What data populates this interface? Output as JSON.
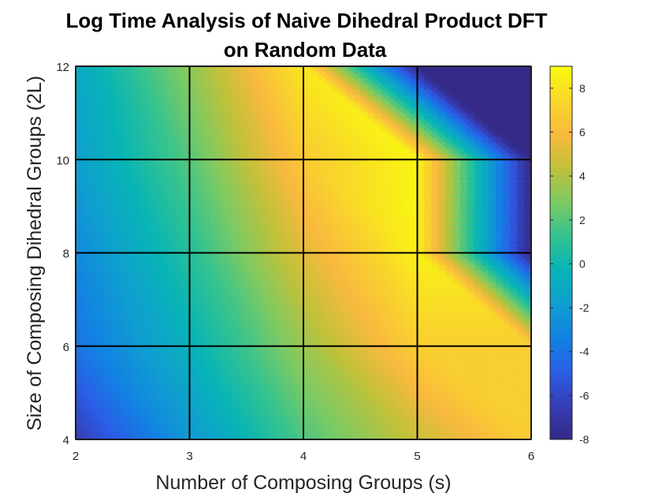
{
  "chart_data": {
    "type": "heatmap",
    "title": "Log Time Analysis of Naive Dihedral Product DFT",
    "subtitle": "on Random Data",
    "xlabel": "Number of Composing Groups (s)",
    "ylabel": "Size of Composing Dihedral Groups (2L)",
    "x": [
      2,
      3,
      4,
      5,
      6
    ],
    "y": [
      4,
      6,
      8,
      10,
      12
    ],
    "xlim": [
      2,
      6
    ],
    "ylim": [
      4,
      12
    ],
    "xticks": [
      "2",
      "3",
      "4",
      "5",
      "6"
    ],
    "yticks": [
      "4",
      "6",
      "8",
      "10",
      "12"
    ],
    "z": [
      [
        -6.5,
        -2.2,
        1.8,
        4.6,
        7.0
      ],
      [
        -4.0,
        -0.5,
        3.5,
        7.0,
        7.0
      ],
      [
        -3.0,
        0.8,
        5.2,
        8.6,
        -8.0
      ],
      [
        -1.8,
        2.0,
        6.8,
        8.8,
        -8.0
      ],
      [
        -1.2,
        3.2,
        8.2,
        -8.0,
        -8.0
      ]
    ],
    "colorbar": {
      "clim": [
        -8,
        9
      ],
      "ticks": [
        "-8",
        "-6",
        "-4",
        "-2",
        "0",
        "2",
        "4",
        "6",
        "8"
      ]
    },
    "colormap": "parula",
    "grid": true
  }
}
